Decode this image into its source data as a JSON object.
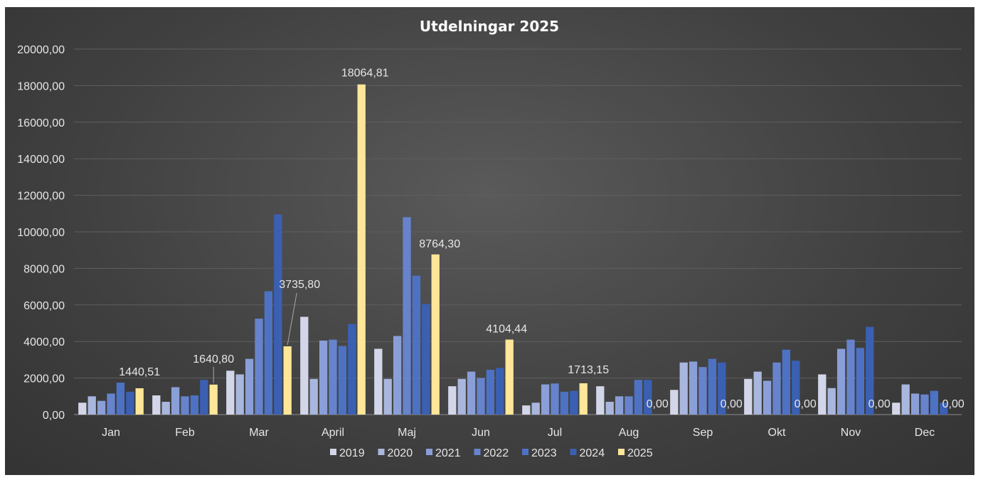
{
  "chart_data": {
    "type": "bar",
    "title": "Utdelningar 2025",
    "categories": [
      "Jan",
      "Feb",
      "Mar",
      "April",
      "Maj",
      "Jun",
      "Jul",
      "Aug",
      "Sep",
      "Okt",
      "Nov",
      "Dec"
    ],
    "y_ticks": [
      "0,00",
      "2000,00",
      "4000,00",
      "6000,00",
      "8000,00",
      "10000,00",
      "12000,00",
      "14000,00",
      "16000,00",
      "18000,00",
      "20000,00"
    ],
    "ylim": [
      0,
      20000
    ],
    "grid": true,
    "legend_position": "bottom",
    "series": [
      {
        "name": "2019",
        "color": "#d2d6e8",
        "values": [
          650,
          1050,
          2400,
          5350,
          3600,
          1550,
          500,
          1550,
          1350,
          1950,
          2200,
          650
        ]
      },
      {
        "name": "2020",
        "color": "#a9b6dd",
        "values": [
          1000,
          700,
          2200,
          1950,
          1950,
          1950,
          650,
          700,
          2850,
          2350,
          1450,
          1650
        ]
      },
      {
        "name": "2021",
        "color": "#8a9fd8",
        "values": [
          750,
          1500,
          3050,
          4050,
          4300,
          2350,
          1650,
          1000,
          2900,
          1850,
          3600,
          1150
        ]
      },
      {
        "name": "2022",
        "color": "#6683cc",
        "values": [
          1150,
          1000,
          5250,
          4100,
          10800,
          2000,
          1700,
          1000,
          2600,
          2850,
          4100,
          1100
        ]
      },
      {
        "name": "2023",
        "color": "#4d72c4",
        "values": [
          1750,
          1050,
          6750,
          3750,
          7600,
          2450,
          1250,
          1900,
          3050,
          3550,
          3650,
          1300
        ]
      },
      {
        "name": "2024",
        "color": "#3b60b2",
        "values": [
          1250,
          1900,
          10950,
          4950,
          6050,
          2550,
          1300,
          1900,
          2850,
          2950,
          4800,
          650
        ]
      },
      {
        "name": "2025",
        "color": "#ffe699",
        "values": [
          1440.51,
          1640.8,
          3735.8,
          18064.81,
          8764.3,
          4104.44,
          1713.15,
          0,
          0,
          0,
          0,
          0
        ],
        "labels": [
          "1440,51",
          "1640,80",
          "3735,80",
          "18064,81",
          "8764,30",
          "4104,44",
          "1713,15",
          "0,00",
          "0,00",
          "0,00",
          "0,00",
          "0,00"
        ]
      }
    ]
  }
}
